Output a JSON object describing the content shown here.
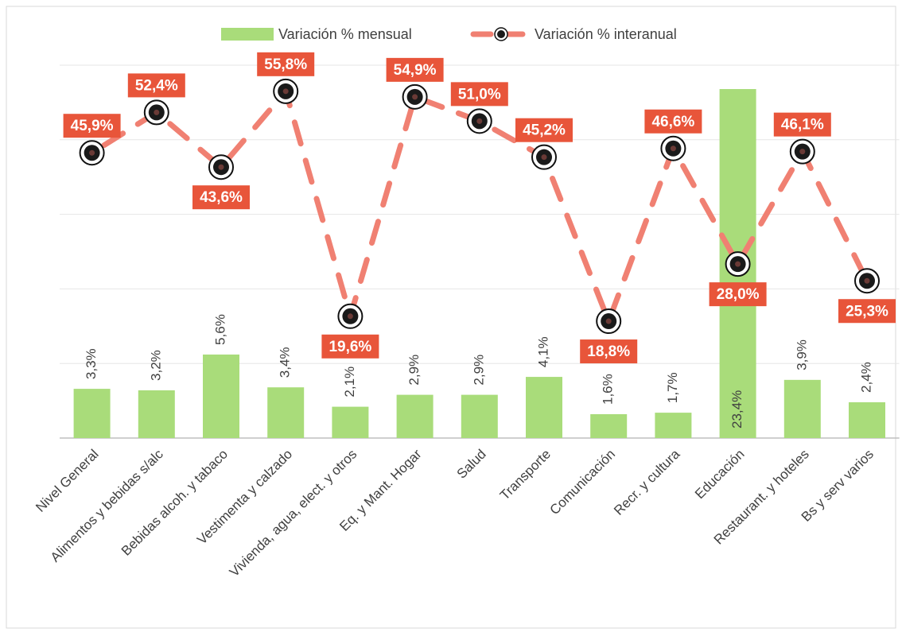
{
  "chart_data": {
    "type": "bar",
    "categories": [
      "Nivel General",
      "Alimentos y bebidas s/alc",
      "Bebidas alcoh. y tabaco",
      "Vestimenta y calzado",
      "Vivienda, agua, elect. y otros",
      "Eq. y Mant. Hogar",
      "Salud",
      "Transporte",
      "Comunicación",
      "Recr. y cultura",
      "Educación",
      "Restaurant. y hoteles",
      "Bs y serv varios"
    ],
    "series": [
      {
        "name": "Variación % mensual",
        "type": "bar",
        "color": "#a9dc7a",
        "values": [
          3.3,
          3.2,
          5.6,
          3.4,
          2.1,
          2.9,
          2.9,
          4.1,
          1.6,
          1.7,
          23.4,
          3.9,
          2.4
        ],
        "value_labels": [
          "3,3%",
          "3,2%",
          "5,6%",
          "3,4%",
          "2,1%",
          "2,9%",
          "2,9%",
          "4,1%",
          "1,6%",
          "1,7%",
          "23,4%",
          "3,9%",
          "2,4%"
        ]
      },
      {
        "name": "Variación % interanual",
        "type": "line",
        "axis": "y2",
        "color": "#f08072",
        "values": [
          45.9,
          52.4,
          43.6,
          55.8,
          19.6,
          54.9,
          51.0,
          45.2,
          18.8,
          46.6,
          28.0,
          46.1,
          25.3
        ],
        "value_labels": [
          "45,9%",
          "52,4%",
          "43,6%",
          "55,8%",
          "19,6%",
          "54,9%",
          "51,0%",
          "45,2%",
          "18,8%",
          "46,6%",
          "28,0%",
          "46,1%",
          "25,3%"
        ]
      }
    ],
    "ylim": [
      0,
      25
    ],
    "yticks": [
      0,
      5,
      10,
      15,
      20,
      25
    ],
    "y2lim": [
      0,
      60
    ],
    "grid": true
  }
}
